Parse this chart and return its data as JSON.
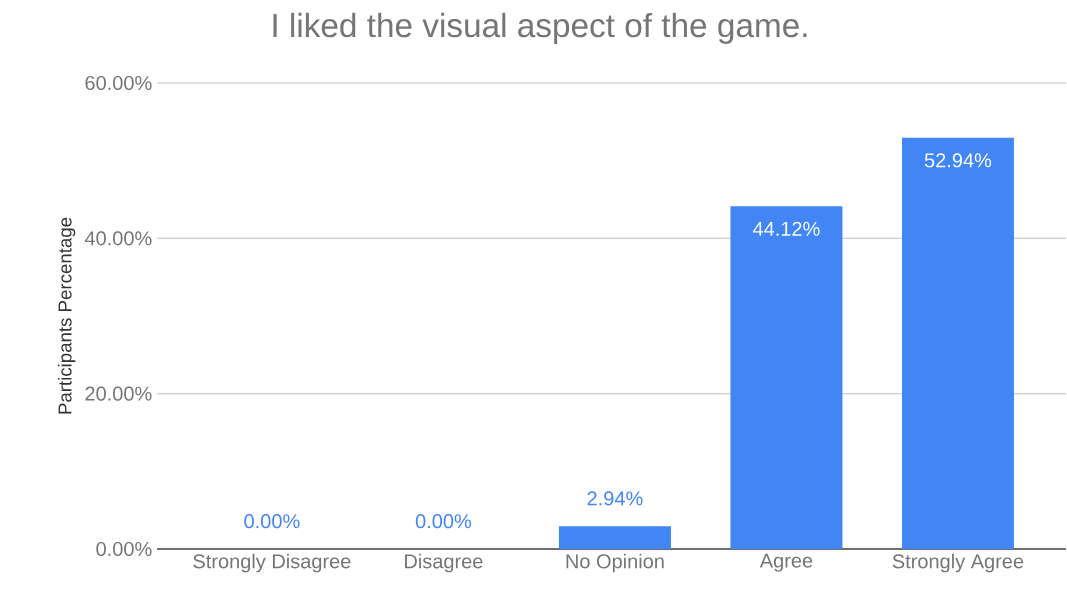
{
  "chart_data": {
    "type": "bar",
    "title": "I liked the visual aspect of the game.",
    "ylabel": "Participants Percentage",
    "categories": [
      "Strongly Disagree",
      "Disagree",
      "No Opinion",
      "Agree",
      "Strongly Agree"
    ],
    "values": [
      0,
      0,
      2.94,
      44.12,
      52.94
    ],
    "value_labels": [
      "0.00%",
      "0.00%",
      "2.94%",
      "44.12%",
      "52.94%"
    ],
    "color": "#4285f4",
    "ylim": [
      0,
      60
    ],
    "yticks": [
      {
        "value": 0,
        "label": "0.00%"
      },
      {
        "value": 20,
        "label": "20.00%"
      },
      {
        "value": 40,
        "label": "40.00%"
      },
      {
        "value": 60,
        "label": "60.00%"
      }
    ],
    "grid": "y"
  }
}
